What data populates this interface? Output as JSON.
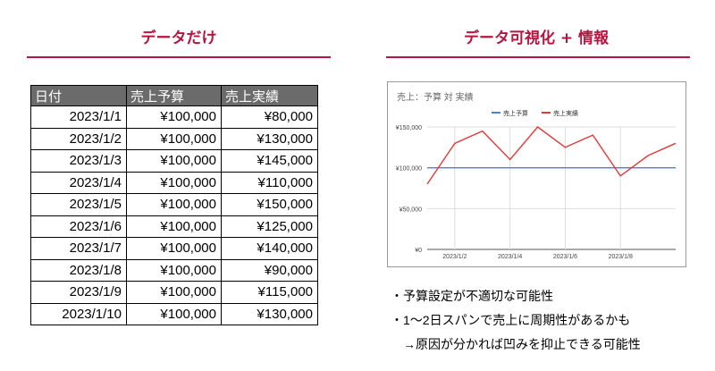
{
  "left_heading": "データだけ",
  "right_heading": "データ可視化 + 情報",
  "table": {
    "headers": [
      "日付",
      "売上予算",
      "売上実績"
    ],
    "rows": [
      [
        "2023/1/1",
        "¥100,000",
        "¥80,000"
      ],
      [
        "2023/1/2",
        "¥100,000",
        "¥130,000"
      ],
      [
        "2023/1/3",
        "¥100,000",
        "¥145,000"
      ],
      [
        "2023/1/4",
        "¥100,000",
        "¥110,000"
      ],
      [
        "2023/1/5",
        "¥100,000",
        "¥150,000"
      ],
      [
        "2023/1/6",
        "¥100,000",
        "¥125,000"
      ],
      [
        "2023/1/7",
        "¥100,000",
        "¥140,000"
      ],
      [
        "2023/1/8",
        "¥100,000",
        "¥90,000"
      ],
      [
        "2023/1/9",
        "¥100,000",
        "¥115,000"
      ],
      [
        "2023/1/10",
        "¥100,000",
        "¥130,000"
      ]
    ]
  },
  "chart_data": {
    "type": "line",
    "title": "売上：予算 対 実績",
    "x": [
      "2023/1/1",
      "2023/1/2",
      "2023/1/3",
      "2023/1/4",
      "2023/1/5",
      "2023/1/6",
      "2023/1/7",
      "2023/1/8",
      "2023/1/9",
      "2023/1/10"
    ],
    "x_tick_labels": [
      "2023/1/2",
      "2023/1/4",
      "2023/1/6",
      "2023/1/8"
    ],
    "y_tick_values": [
      0,
      50000,
      100000,
      150000
    ],
    "y_tick_labels": [
      "¥0",
      "¥50,000",
      "¥100,000",
      "¥150,000"
    ],
    "ylim": [
      0,
      150000
    ],
    "grid": true,
    "legend_position": "top",
    "series": [
      {
        "name": "売上予算",
        "color": "#4a7fe0",
        "values": [
          100000,
          100000,
          100000,
          100000,
          100000,
          100000,
          100000,
          100000,
          100000,
          100000
        ]
      },
      {
        "name": "売上実績",
        "color": "#e03a3a",
        "values": [
          80000,
          130000,
          145000,
          110000,
          150000,
          125000,
          140000,
          90000,
          115000,
          130000
        ]
      }
    ]
  },
  "notes": [
    "・予算設定が不適切な可能性",
    "・1～2日スパンで売上に周期性があるかも",
    "　→原因が分かれば凹みを抑止できる可能性"
  ],
  "colors": {
    "accent": "#b5153e",
    "header_bg": "#6b6b6b"
  }
}
